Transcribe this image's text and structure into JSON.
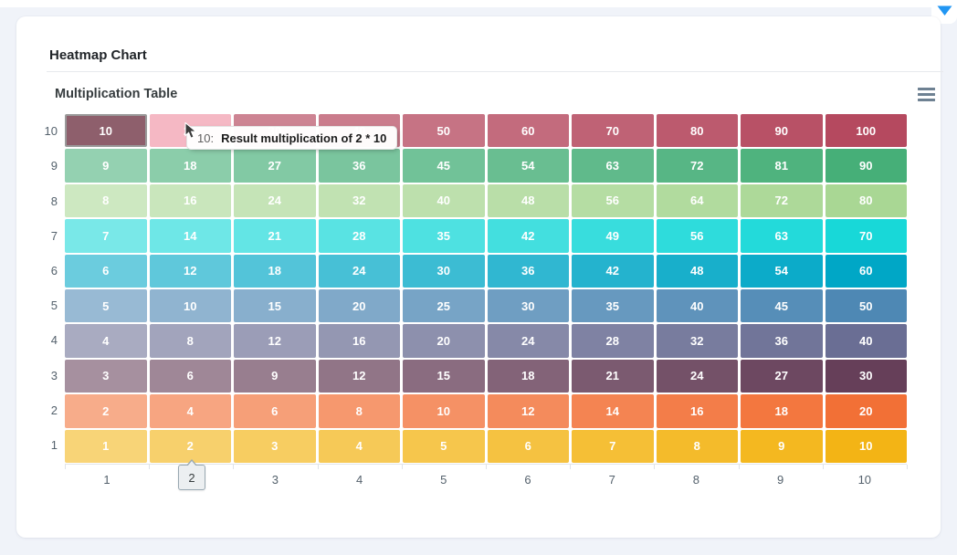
{
  "page": {
    "collapse_icon": "blue-caret-down",
    "accent_color": "#2196f3",
    "background_color": "#f0f3f9"
  },
  "card": {
    "title": "Heatmap Chart"
  },
  "chart": {
    "title": "Multiplication Table",
    "menu_icon": "hamburger-menu"
  },
  "chart_data": {
    "type": "heatmap",
    "title": "Multiplication Table",
    "x_categories": [
      "1",
      "2",
      "3",
      "4",
      "5",
      "6",
      "7",
      "8",
      "9",
      "10"
    ],
    "y_categories_top_to_bottom": [
      "10",
      "9",
      "8",
      "7",
      "6",
      "5",
      "4",
      "3",
      "2",
      "1"
    ],
    "rows_top_to_bottom": [
      {
        "label": "10",
        "base_color": "#B5495F",
        "values": [
          10,
          20,
          30,
          40,
          50,
          60,
          70,
          80,
          90,
          100
        ]
      },
      {
        "label": "9",
        "base_color": "#46AF78",
        "values": [
          9,
          18,
          27,
          36,
          45,
          54,
          63,
          72,
          81,
          90
        ]
      },
      {
        "label": "8",
        "base_color": "#A9D794",
        "values": [
          8,
          16,
          24,
          32,
          40,
          48,
          56,
          64,
          72,
          80
        ]
      },
      {
        "label": "7",
        "base_color": "#18D8D8",
        "values": [
          7,
          14,
          21,
          28,
          35,
          42,
          49,
          56,
          63,
          70
        ]
      },
      {
        "label": "6",
        "base_color": "#00A7C6",
        "values": [
          6,
          12,
          18,
          24,
          30,
          36,
          42,
          48,
          54,
          60
        ]
      },
      {
        "label": "5",
        "base_color": "#4E88B4",
        "values": [
          5,
          10,
          15,
          20,
          25,
          30,
          35,
          40,
          45,
          50
        ]
      },
      {
        "label": "4",
        "base_color": "#6A6E94",
        "values": [
          4,
          8,
          12,
          16,
          20,
          24,
          28,
          32,
          36,
          40
        ]
      },
      {
        "label": "3",
        "base_color": "#663F59",
        "values": [
          3,
          6,
          9,
          12,
          15,
          18,
          21,
          24,
          27,
          30
        ]
      },
      {
        "label": "2",
        "base_color": "#F27036",
        "values": [
          2,
          4,
          6,
          8,
          10,
          12,
          14,
          16,
          18,
          20
        ]
      },
      {
        "label": "1",
        "base_color": "#F3B415",
        "values": [
          1,
          2,
          3,
          4,
          5,
          6,
          7,
          8,
          9,
          10
        ]
      }
    ],
    "shade_rule": {
      "direction": "lighter-left-to-full-right",
      "max_white_mix": 0.42
    },
    "cell_value_text_color": "#ffffff",
    "axis_label_color": "#54616c",
    "grid_on": false,
    "legend": "none",
    "states": {
      "active_cell": {
        "x": "1",
        "y": "10",
        "fill": "#8E5F6C",
        "border_color": "#9A9A9A"
      },
      "hovered_cell": {
        "x": "2",
        "y": "10",
        "fill": "#F5B8C4"
      }
    }
  },
  "cell_tooltip": {
    "series_label": "10:",
    "text": "Result multiplication of 2 * 10"
  },
  "xaxis_tooltip": {
    "value": "2"
  }
}
